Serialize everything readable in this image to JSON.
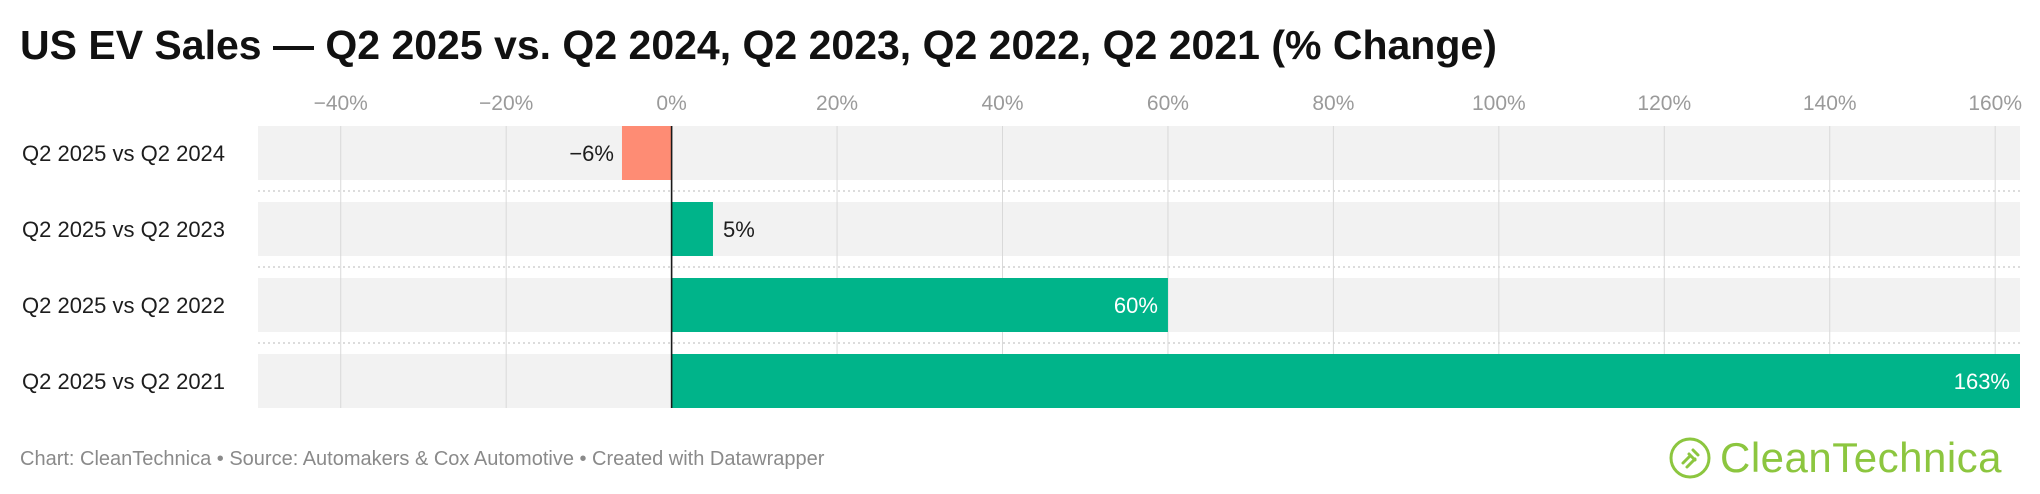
{
  "page": {
    "title": "US EV Sales — Q2 2025 vs. Q2 2024, Q2 2023, Q2 2022, Q2 2021 (% Change)",
    "footer": "Chart: CleanTechnica • Source: Automakers & Cox Automotive • Created with Datawrapper",
    "logo_text": "CleanTechnica"
  },
  "chart_data": {
    "type": "bar",
    "orientation": "horizontal",
    "title": "US EV Sales — Q2 2025 vs. Q2 2024, Q2 2023, Q2 2022, Q2 2021 (% Change)",
    "xlabel": "",
    "ylabel": "",
    "xlim": [
      -50,
      163
    ],
    "ticks": [
      -40,
      -20,
      0,
      20,
      40,
      60,
      80,
      100,
      120,
      140,
      160
    ],
    "tick_labels": [
      "−40%",
      "−20%",
      "0%",
      "20%",
      "40%",
      "60%",
      "80%",
      "100%",
      "120%",
      "140%",
      "160%"
    ],
    "categories": [
      "Q2 2025 vs Q2 2024",
      "Q2 2025 vs Q2 2023",
      "Q2 2025 vs Q2 2022",
      "Q2 2025 vs Q2 2021"
    ],
    "values": [
      -6,
      5,
      60,
      163
    ],
    "value_labels": [
      "−6%",
      "5%",
      "60%",
      "163%"
    ],
    "colors": {
      "positive": "#00b48a",
      "negative": "#fe8c74",
      "background_bar": "#f2f2f2",
      "grid": "#d9d9d9"
    },
    "grid": true,
    "legend": "none"
  }
}
